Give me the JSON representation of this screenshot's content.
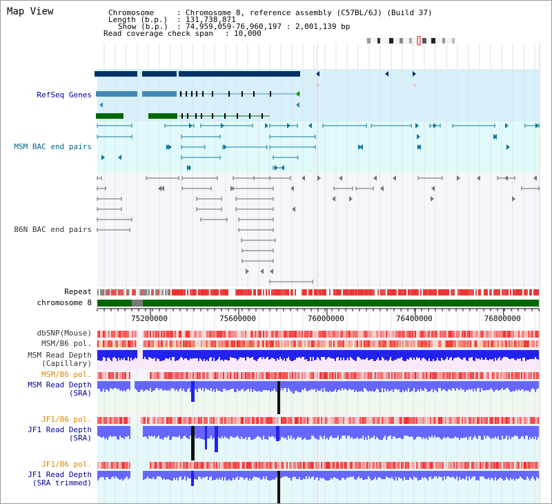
{
  "window": {
    "title": "Map View"
  },
  "info": {
    "chromosome_label": "Chromosome",
    "chromosome_value": "Chromosome 8, reference assembly (C57BL/6J) (Build 37)",
    "length_label": "Length (b.p.)",
    "length_value": "131,738,871",
    "show_label": "Show (b.p.)",
    "show_value": "74,959,059-76,960,197 : 2,001,139 bp",
    "coverage_label": "Read coverage check span",
    "coverage_value": "10,000"
  },
  "tracks": {
    "refseq": "RefSeq Genes",
    "msm_bac": "MSM BAC end pairs",
    "b6n_bac": "B6N BAC end pairs",
    "repeat": "Repeat",
    "chromosome": "chromosome 8",
    "dbsnp": "dbSNP(Mouse)",
    "msm_b6_pol_1": "MSM/B6 pol.",
    "msm_depth_cap_1": "MSM Read Depth",
    "msm_depth_cap_2": "(Capillary)",
    "msm_b6_pol_2": "MSM/B6 pol.",
    "msm_depth_sra_1": "MSM Read Depth",
    "msm_depth_sra_2": "(SRA)",
    "jf1_b6_pol_1": "JF1/B6 pol.",
    "jf1_depth_sra_1": "JF1 Read Depth",
    "jf1_depth_sra_2": "(SRA)",
    "jf1_b6_pol_2": "JF1/B6 pol.",
    "jf1_depth_trim_1": "JF1 Read Depth",
    "jf1_depth_trim_2": "(SRA trimmed)"
  },
  "axis": {
    "view_start": 74959059,
    "view_end": 76960197,
    "ticks": [
      {
        "value": 75200000,
        "label": "75200000"
      },
      {
        "value": 75600000,
        "label": "75600000"
      },
      {
        "value": 76000000,
        "label": "76000000"
      },
      {
        "value": 76400000,
        "label": "76400000"
      },
      {
        "value": 76800000,
        "label": "76800000"
      }
    ]
  },
  "colors": {
    "refseq_bg": "#d8f0fa",
    "msm_bg": "#e0fafa",
    "b6n_bg": "#f5f5fa",
    "refseq_dark": "#003366",
    "refseq_mid": "#4488b8",
    "refseq_green": "#006600",
    "msm_feature": "#117799",
    "b6n_feature": "#666666",
    "chromosome_bar": "#006600",
    "snp_red": "#ee3333",
    "depth_blue": "#2222ee",
    "depth_light": "#6666ff",
    "label_blue": "#000099",
    "label_orange": "#dd8800",
    "label_dark": "#333333",
    "label_teal": "#006688"
  }
}
